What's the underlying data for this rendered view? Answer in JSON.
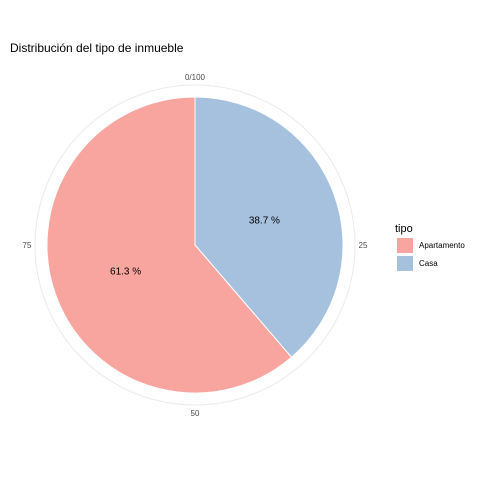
{
  "chart_data": {
    "type": "pie",
    "title": "Distribución del tipo de inmueble",
    "legend_title": "tipo",
    "legend_position": "right",
    "axis_ticks": [
      "0/100",
      "25",
      "50",
      "75"
    ],
    "grid": true,
    "slices": [
      {
        "category": "Apartamento",
        "value": 61.3,
        "label": "61.3 %",
        "color": "#F8A59F"
      },
      {
        "category": "Casa",
        "value": 38.7,
        "label": "38.7 %",
        "color": "#A6C1DD"
      }
    ]
  }
}
